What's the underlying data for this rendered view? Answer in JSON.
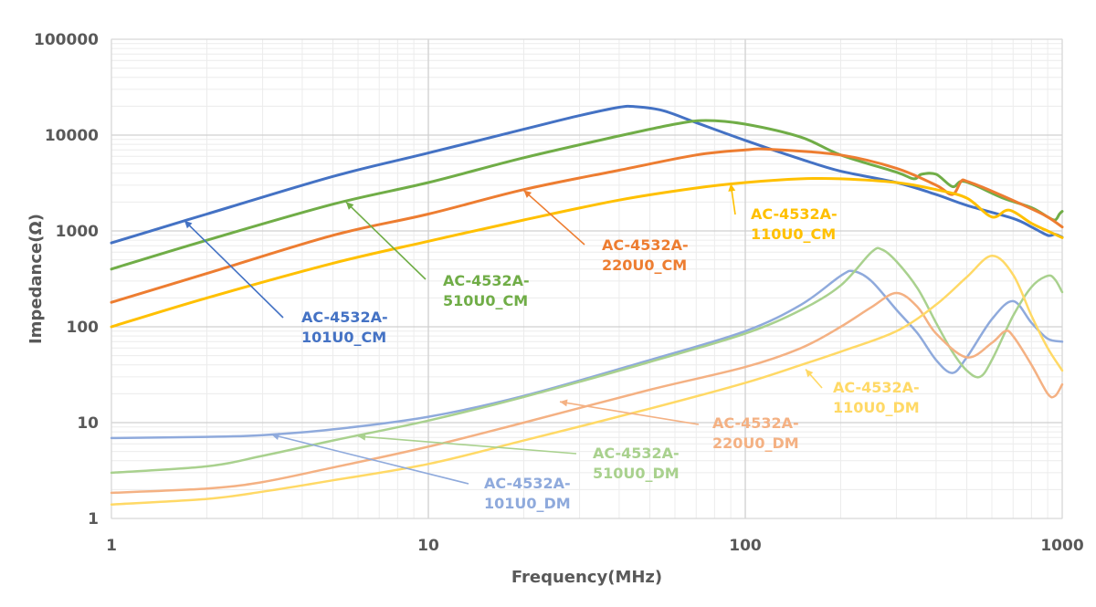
{
  "chart_data": {
    "type": "line",
    "xlabel": "Frequency(MHz)",
    "ylabel": "Impedance(Ω)",
    "x_scale": "log",
    "y_scale": "log",
    "xlim": [
      1,
      1000
    ],
    "ylim": [
      1,
      100000
    ],
    "x_ticks": [
      "1",
      "10",
      "100",
      "1000"
    ],
    "y_ticks": [
      "1",
      "10",
      "100",
      "1000",
      "10000",
      "100000"
    ],
    "grid": true,
    "series": [
      {
        "name": "AC-4532A-101U0_CM",
        "label_lines": [
          "AC-4532A-",
          "101U0_CM"
        ],
        "color": "#4472C4",
        "width": 3,
        "points": [
          [
            1,
            750
          ],
          [
            2,
            1500
          ],
          [
            5,
            3700
          ],
          [
            10,
            6500
          ],
          [
            20,
            11500
          ],
          [
            30,
            16000
          ],
          [
            40,
            19500
          ],
          [
            45,
            19800
          ],
          [
            55,
            18000
          ],
          [
            70,
            13500
          ],
          [
            100,
            8800
          ],
          [
            150,
            5600
          ],
          [
            200,
            4200
          ],
          [
            300,
            3200
          ],
          [
            400,
            2400
          ],
          [
            500,
            1850
          ],
          [
            700,
            1350
          ],
          [
            800,
            1100
          ],
          [
            900,
            900
          ],
          [
            950,
            920
          ],
          [
            1000,
            860
          ]
        ],
        "pointer_at": [
          1.7,
          1280
        ]
      },
      {
        "name": "AC-4532A-510U0_CM",
        "label_lines": [
          "AC-4532A-",
          "510U0_CM"
        ],
        "color": "#70AD47",
        "width": 3,
        "points": [
          [
            1,
            400
          ],
          [
            2,
            800
          ],
          [
            5,
            1900
          ],
          [
            10,
            3200
          ],
          [
            20,
            5800
          ],
          [
            40,
            9800
          ],
          [
            60,
            13000
          ],
          [
            75,
            14200
          ],
          [
            100,
            13000
          ],
          [
            150,
            9500
          ],
          [
            200,
            6200
          ],
          [
            300,
            4100
          ],
          [
            340,
            3500
          ],
          [
            360,
            3900
          ],
          [
            400,
            3900
          ],
          [
            450,
            2900
          ],
          [
            480,
            3300
          ],
          [
            530,
            3000
          ],
          [
            650,
            2200
          ],
          [
            800,
            1750
          ],
          [
            900,
            1400
          ],
          [
            950,
            1300
          ],
          [
            980,
            1500
          ],
          [
            1000,
            1600
          ]
        ],
        "pointer_at": [
          5.5,
          2000
        ]
      },
      {
        "name": "AC-4532A-220U0_CM",
        "label_lines": [
          "AC-4532A-",
          "220U0_CM"
        ],
        "color": "#ED7D31",
        "width": 3,
        "points": [
          [
            1,
            180
          ],
          [
            2,
            360
          ],
          [
            5,
            900
          ],
          [
            10,
            1500
          ],
          [
            20,
            2700
          ],
          [
            40,
            4300
          ],
          [
            70,
            6200
          ],
          [
            100,
            7000
          ],
          [
            120,
            7100
          ],
          [
            200,
            6200
          ],
          [
            300,
            4500
          ],
          [
            400,
            3000
          ],
          [
            450,
            2400
          ],
          [
            480,
            3300
          ],
          [
            500,
            3300
          ],
          [
            600,
            2600
          ],
          [
            800,
            1700
          ],
          [
            900,
            1400
          ],
          [
            1000,
            1100
          ]
        ],
        "pointer_at": [
          20,
          2650
        ]
      },
      {
        "name": "AC-4532A-110U0_CM",
        "label_lines": [
          "AC-4532A-",
          "110U0_CM"
        ],
        "color": "#FFC000",
        "width": 3,
        "points": [
          [
            1,
            100
          ],
          [
            2,
            200
          ],
          [
            5,
            460
          ],
          [
            10,
            780
          ],
          [
            20,
            1300
          ],
          [
            40,
            2100
          ],
          [
            70,
            2800
          ],
          [
            100,
            3200
          ],
          [
            150,
            3500
          ],
          [
            200,
            3500
          ],
          [
            300,
            3200
          ],
          [
            400,
            2700
          ],
          [
            500,
            2200
          ],
          [
            600,
            1400
          ],
          [
            680,
            1650
          ],
          [
            800,
            1200
          ],
          [
            900,
            1000
          ],
          [
            1000,
            850
          ]
        ],
        "pointer_at": [
          90,
          3100
        ]
      },
      {
        "name": "AC-4532A-101U0_DM",
        "label_lines": [
          "AC-4532A-",
          "101U0_DM"
        ],
        "color": "#8FAADC",
        "width": 2.5,
        "points": [
          [
            1,
            6.9
          ],
          [
            2,
            7.1
          ],
          [
            3,
            7.4
          ],
          [
            5,
            8.5
          ],
          [
            10,
            11.5
          ],
          [
            20,
            19
          ],
          [
            50,
            45
          ],
          [
            100,
            90
          ],
          [
            150,
            170
          ],
          [
            200,
            340
          ],
          [
            220,
            380
          ],
          [
            250,
            300
          ],
          [
            300,
            150
          ],
          [
            350,
            85
          ],
          [
            400,
            45
          ],
          [
            450,
            33
          ],
          [
            500,
            48
          ],
          [
            600,
            120
          ],
          [
            700,
            185
          ],
          [
            800,
            110
          ],
          [
            900,
            75
          ],
          [
            1000,
            70
          ]
        ],
        "pointer_at": [
          3.2,
          7.5
        ]
      },
      {
        "name": "AC-4532A-510U0_DM",
        "label_lines": [
          "AC-4532A-",
          "510U0_DM"
        ],
        "color": "#A9D18E",
        "width": 2.5,
        "points": [
          [
            1,
            3
          ],
          [
            2,
            3.5
          ],
          [
            3,
            4.5
          ],
          [
            5,
            6.5
          ],
          [
            10,
            10.5
          ],
          [
            20,
            18.5
          ],
          [
            50,
            43
          ],
          [
            100,
            85
          ],
          [
            150,
            150
          ],
          [
            200,
            270
          ],
          [
            250,
            600
          ],
          [
            270,
            640
          ],
          [
            300,
            480
          ],
          [
            350,
            250
          ],
          [
            400,
            110
          ],
          [
            450,
            55
          ],
          [
            500,
            35
          ],
          [
            550,
            30
          ],
          [
            600,
            45
          ],
          [
            700,
            130
          ],
          [
            800,
            260
          ],
          [
            900,
            340
          ],
          [
            950,
            310
          ],
          [
            1000,
            230
          ]
        ],
        "pointer_at": [
          6,
          7.2
        ]
      },
      {
        "name": "AC-4532A-220U0_DM",
        "label_lines": [
          "AC-4532A-",
          "220U0_DM"
        ],
        "color": "#F4B183",
        "width": 2.5,
        "points": [
          [
            1,
            1.85
          ],
          [
            2,
            2.05
          ],
          [
            3,
            2.4
          ],
          [
            5,
            3.4
          ],
          [
            10,
            5.6
          ],
          [
            20,
            10
          ],
          [
            50,
            22
          ],
          [
            100,
            38
          ],
          [
            150,
            60
          ],
          [
            200,
            100
          ],
          [
            250,
            160
          ],
          [
            300,
            225
          ],
          [
            350,
            160
          ],
          [
            400,
            85
          ],
          [
            500,
            48
          ],
          [
            600,
            68
          ],
          [
            660,
            90
          ],
          [
            700,
            80
          ],
          [
            800,
            40
          ],
          [
            900,
            20
          ],
          [
            950,
            19
          ],
          [
            1000,
            25
          ]
        ],
        "pointer_at": [
          26,
          16.5
        ]
      },
      {
        "name": "AC-4532A-110U0_DM",
        "label_lines": [
          "AC-4532A-",
          "110U0_DM"
        ],
        "color": "#FFD966",
        "width": 2.5,
        "points": [
          [
            1,
            1.4
          ],
          [
            2,
            1.6
          ],
          [
            3,
            1.9
          ],
          [
            5,
            2.5
          ],
          [
            10,
            3.7
          ],
          [
            20,
            6.5
          ],
          [
            50,
            14
          ],
          [
            100,
            26
          ],
          [
            150,
            40
          ],
          [
            200,
            55
          ],
          [
            300,
            90
          ],
          [
            400,
            170
          ],
          [
            500,
            330
          ],
          [
            600,
            550
          ],
          [
            700,
            350
          ],
          [
            800,
            130
          ],
          [
            900,
            60
          ],
          [
            1000,
            35
          ]
        ],
        "pointer_at": [
          155,
          36
        ]
      }
    ]
  }
}
